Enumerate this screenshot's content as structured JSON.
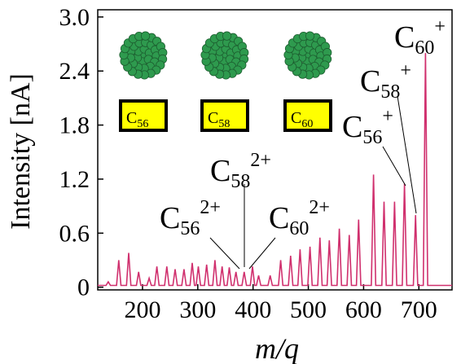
{
  "chart_data": {
    "type": "line",
    "xlabel": "m/q",
    "ylabel": "Intensity [nA]",
    "xlim": [
      119,
      760
    ],
    "ylim": [
      -0.03,
      3.08
    ],
    "xticks": [
      200,
      300,
      400,
      500,
      600,
      700
    ],
    "yticks": [
      0,
      0.6,
      1.2,
      1.8,
      2.4,
      {
        "value": 3.0,
        "label": "3.0"
      }
    ],
    "series": [
      {
        "color": "#d0306e",
        "x": [
          119,
          134,
          138,
          142,
          153,
          157,
          161,
          171,
          175,
          179,
          189,
          193,
          197,
          208,
          212,
          216,
          222,
          226,
          230,
          240,
          244,
          248,
          255,
          259,
          263,
          271,
          275,
          279,
          286,
          290,
          294,
          297,
          301,
          305,
          312,
          316,
          320,
          327,
          331,
          335,
          340,
          344,
          348,
          353,
          357,
          361,
          365,
          369,
          373,
          380,
          384,
          388,
          395,
          399,
          403,
          406,
          410,
          414,
          427,
          431,
          435,
          446,
          450,
          454,
          464,
          468,
          472,
          481,
          485,
          489,
          499,
          503,
          507,
          517,
          521,
          525,
          534,
          538,
          542,
          552,
          556,
          560,
          570,
          574,
          578,
          587,
          591,
          595,
          614,
          618,
          622,
          633,
          637,
          641,
          652,
          656,
          660,
          670,
          674,
          678,
          690,
          694,
          698,
          708,
          712,
          716,
          760
        ],
        "values": [
          0.02,
          0.02,
          0.06,
          0.02,
          0.02,
          0.3,
          0.02,
          0.02,
          0.38,
          0.02,
          0.02,
          0.17,
          0.02,
          0.02,
          0.1,
          0.02,
          0.02,
          0.23,
          0.02,
          0.02,
          0.23,
          0.02,
          0.02,
          0.2,
          0.02,
          0.02,
          0.2,
          0.02,
          0.02,
          0.27,
          0.02,
          0.02,
          0.23,
          0.02,
          0.02,
          0.25,
          0.02,
          0.02,
          0.3,
          0.02,
          0.02,
          0.23,
          0.02,
          0.02,
          0.22,
          0.02,
          0.02,
          0.17,
          0.02,
          0.02,
          0.17,
          0.02,
          0.02,
          0.23,
          0.02,
          0.02,
          0.13,
          0.02,
          0.02,
          0.13,
          0.02,
          0.02,
          0.3,
          0.02,
          0.02,
          0.35,
          0.02,
          0.02,
          0.42,
          0.02,
          0.02,
          0.45,
          0.02,
          0.02,
          0.55,
          0.02,
          0.02,
          0.52,
          0.02,
          0.02,
          0.65,
          0.02,
          0.02,
          0.58,
          0.02,
          0.02,
          0.75,
          0.02,
          0.02,
          1.25,
          0.02,
          0.02,
          0.95,
          0.02,
          0.02,
          0.95,
          0.02,
          0.02,
          1.15,
          0.02,
          0.02,
          0.8,
          0.02,
          0.02,
          2.6,
          0.02,
          0.02
        ]
      }
    ],
    "insets": [
      {
        "base": "C",
        "sub": "56"
      },
      {
        "base": "C",
        "sub": "58"
      },
      {
        "base": "C",
        "sub": "60"
      }
    ],
    "annotations": [
      {
        "base": "C",
        "sub": "60",
        "sup": "+"
      },
      {
        "base": "C",
        "sub": "58",
        "sup": "+"
      },
      {
        "base": "C",
        "sub": "56",
        "sup": "+"
      },
      {
        "base": "C",
        "sub": "58",
        "sup": "2+"
      },
      {
        "base": "C",
        "sub": "56",
        "sup": "2+"
      },
      {
        "base": "C",
        "sub": "60",
        "sup": "2+"
      }
    ]
  }
}
